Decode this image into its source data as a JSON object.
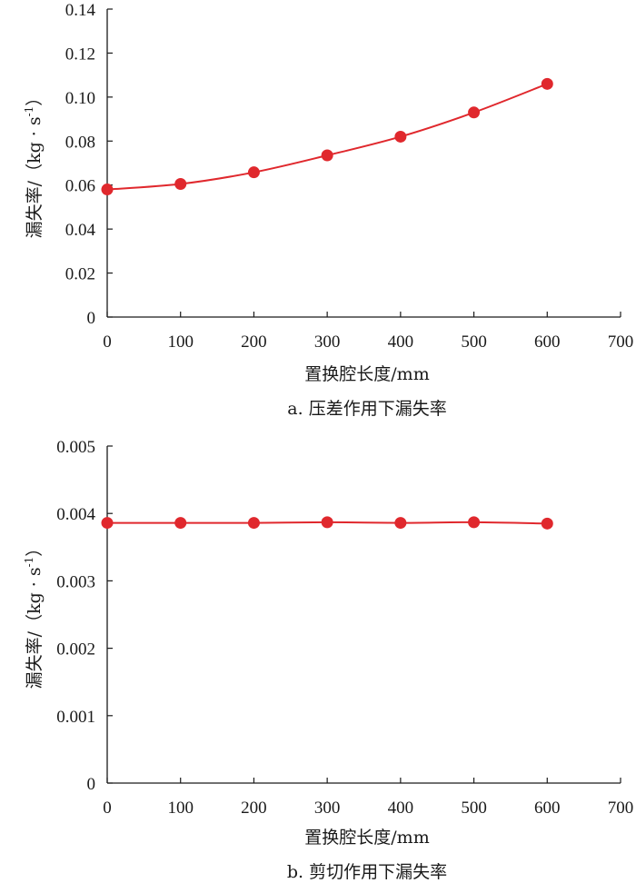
{
  "chart_data": [
    {
      "type": "line",
      "caption": "a. 压差作用下漏失率",
      "xlabel": "置换腔长度/mm",
      "ylabel": "漏失率/（kg · s",
      "ylabel_sup": "-1",
      "ylabel_close": "）",
      "xlim": [
        0,
        700
      ],
      "ylim": [
        0,
        0.14
      ],
      "x_ticks": [
        0,
        100,
        200,
        300,
        400,
        500,
        600,
        700
      ],
      "x_tick_labels": [
        "0",
        "100",
        "200",
        "300",
        "400",
        "500",
        "600",
        "700"
      ],
      "y_ticks": [
        0,
        0.02,
        0.04,
        0.06,
        0.08,
        0.1,
        0.12,
        0.14
      ],
      "y_tick_labels": [
        "0",
        "0.02",
        "0.04",
        "0.06",
        "0.08",
        "0.10",
        "0.12",
        "0.14"
      ],
      "grid": false,
      "color": "#e0282d",
      "series": [
        {
          "x": [
            0,
            100,
            200,
            300,
            400,
            500,
            600
          ],
          "values": [
            0.058,
            0.0605,
            0.0658,
            0.0735,
            0.082,
            0.093,
            0.106
          ]
        }
      ]
    },
    {
      "type": "line",
      "caption": "b. 剪切作用下漏失率",
      "xlabel": "置换腔长度/mm",
      "ylabel": "漏失率/（kg · s",
      "ylabel_sup": "-1",
      "ylabel_close": "）",
      "xlim": [
        0,
        700
      ],
      "ylim": [
        0,
        0.005
      ],
      "x_ticks": [
        0,
        100,
        200,
        300,
        400,
        500,
        600,
        700
      ],
      "x_tick_labels": [
        "0",
        "100",
        "200",
        "300",
        "400",
        "500",
        "600",
        "700"
      ],
      "y_ticks": [
        0,
        0.001,
        0.002,
        0.003,
        0.004,
        0.005
      ],
      "y_tick_labels": [
        "0",
        "0.001",
        "0.002",
        "0.003",
        "0.004",
        "0.005"
      ],
      "grid": false,
      "color": "#e0282d",
      "series": [
        {
          "x": [
            0,
            100,
            200,
            300,
            400,
            500,
            600
          ],
          "values": [
            0.00386,
            0.00386,
            0.00386,
            0.00387,
            0.00386,
            0.00387,
            0.00385
          ]
        }
      ]
    }
  ]
}
